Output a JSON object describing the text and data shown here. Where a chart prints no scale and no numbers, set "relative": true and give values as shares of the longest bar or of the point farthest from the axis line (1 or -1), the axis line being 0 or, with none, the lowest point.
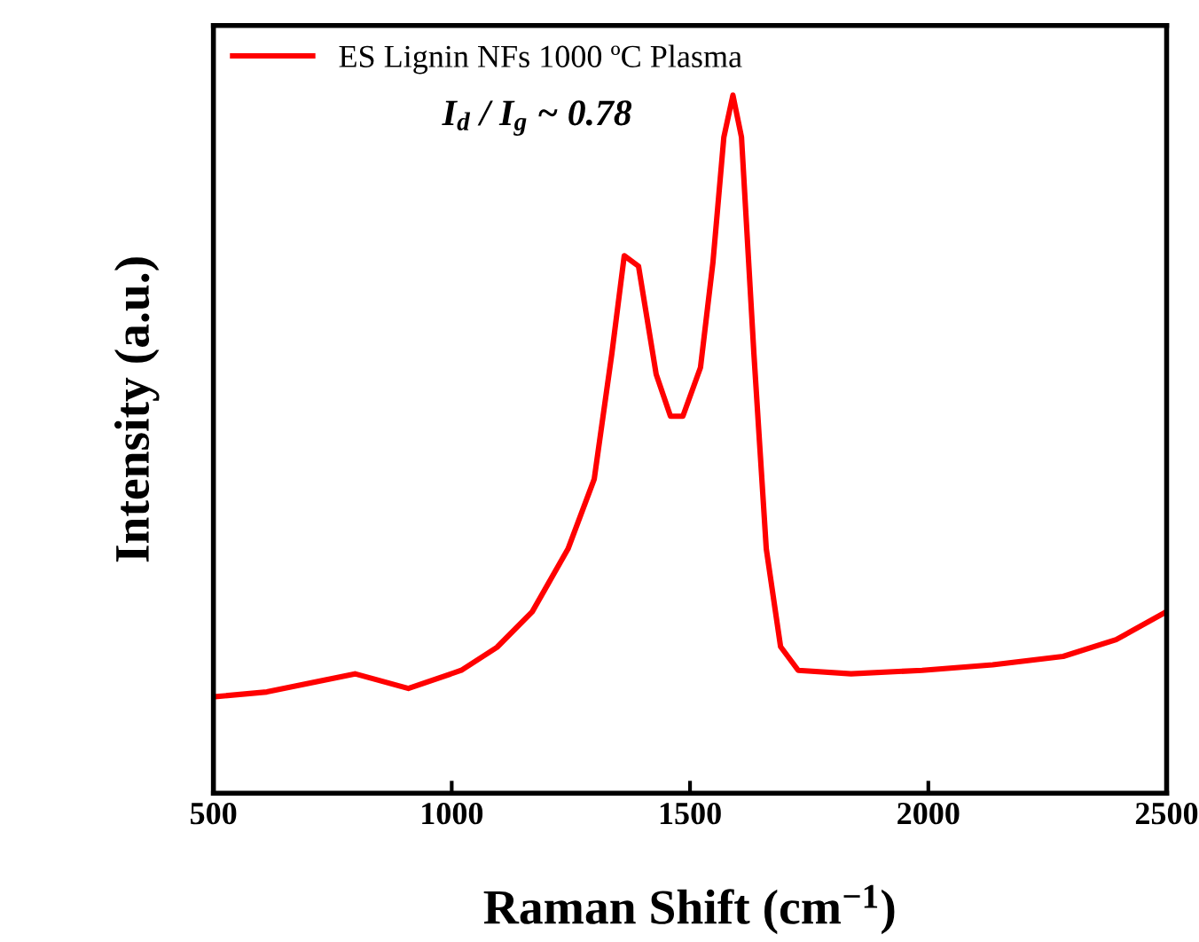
{
  "chart_data": {
    "type": "line",
    "relative": true,
    "xlabel": "Raman Shift (cm$^{−1}$)",
    "ylabel": "Intensity (a.u.)",
    "xlim": [
      500,
      2500
    ],
    "xticks": [
      500,
      1000,
      1500,
      2000,
      2500
    ],
    "annotations": [
      "I$_{d}$ / I$_{g}$ ~ 0.78"
    ],
    "legend": "top left",
    "grid": false,
    "tick_labels": "x",
    "series": [
      {
        "name": "ES Lignin NFs 1000 ºC Plasma",
        "color": "#ff0000",
        "x": [
          500,
          612,
          797,
          909,
          1020,
          1095,
          1169,
          1244,
          1299,
          1336,
          1362,
          1392,
          1429,
          1459,
          1485,
          1522,
          1548,
          1571,
          1590,
          1608,
          1634,
          1660,
          1690,
          1727,
          1838,
          1987,
          2135,
          2283,
          2394,
          2500
        ],
        "values": [
          0.138,
          0.145,
          0.171,
          0.15,
          0.176,
          0.209,
          0.26,
          0.35,
          0.45,
          0.63,
          0.77,
          0.755,
          0.6,
          0.54,
          0.54,
          0.61,
          0.76,
          0.94,
          1.0,
          0.94,
          0.63,
          0.35,
          0.21,
          0.176,
          0.171,
          0.176,
          0.184,
          0.196,
          0.22,
          0.26
        ]
      }
    ]
  }
}
